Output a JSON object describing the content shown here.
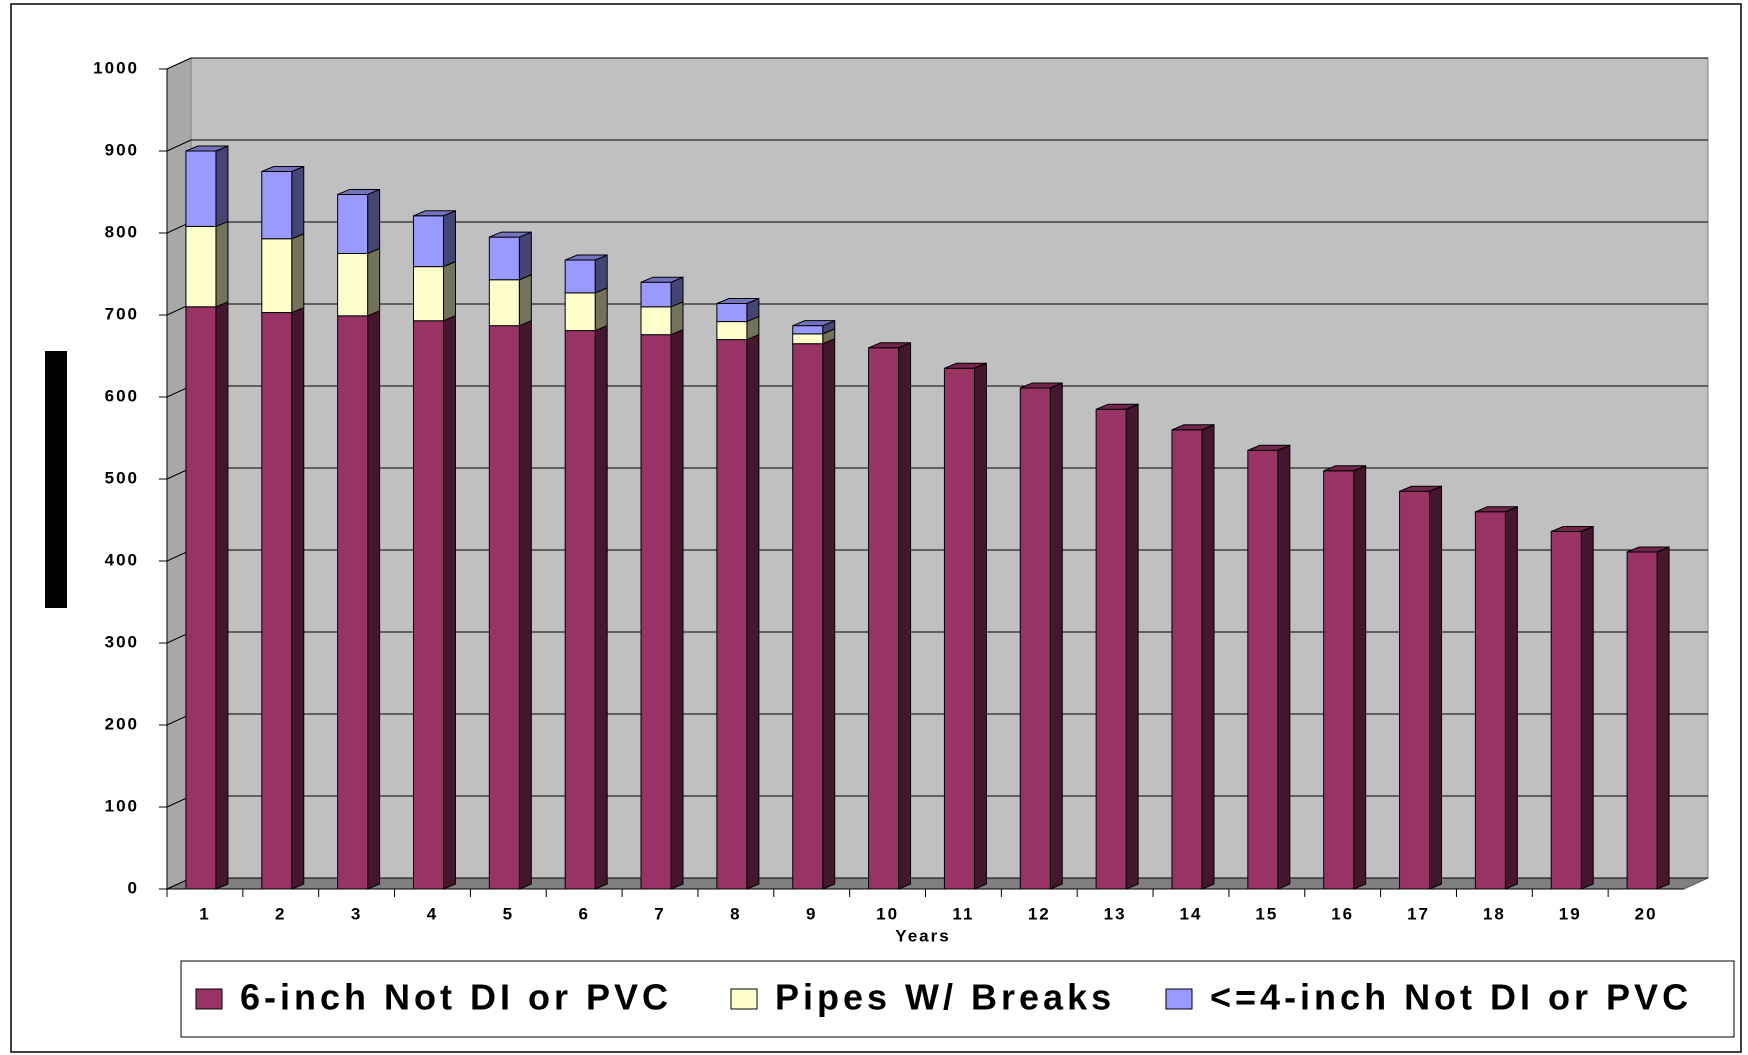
{
  "chart_data": {
    "type": "stacked-bar-3d",
    "x_label": "Years",
    "categories": [
      "1",
      "2",
      "3",
      "4",
      "5",
      "6",
      "7",
      "8",
      "9",
      "10",
      "11",
      "12",
      "13",
      "14",
      "15",
      "16",
      "17",
      "18",
      "19",
      "20"
    ],
    "series": [
      {
        "name": "6-inch Not DI or PVC",
        "color": "#993366",
        "values": [
          710,
          703,
          699,
          693,
          687,
          681,
          676,
          670,
          665,
          660,
          635,
          611,
          585,
          560,
          535,
          510,
          485,
          460,
          436,
          411
        ]
      },
      {
        "name": "Pipes W/ Breaks",
        "color": "#ffffcc",
        "values": [
          98,
          90,
          76,
          66,
          56,
          46,
          34,
          22,
          12,
          0,
          0,
          0,
          0,
          0,
          0,
          0,
          0,
          0,
          0,
          0
        ]
      },
      {
        "name": "<=4-inch Not DI or PVC",
        "color": "#9999ff",
        "values": [
          92,
          82,
          72,
          62,
          52,
          40,
          30,
          22,
          10,
          0,
          0,
          0,
          0,
          0,
          0,
          0,
          0,
          0,
          0,
          0
        ]
      }
    ],
    "ylim": [
      0,
      1000
    ],
    "yticks": [
      0,
      100,
      200,
      300,
      400,
      500,
      600,
      700,
      800,
      900,
      1000
    ],
    "grid": true
  }
}
